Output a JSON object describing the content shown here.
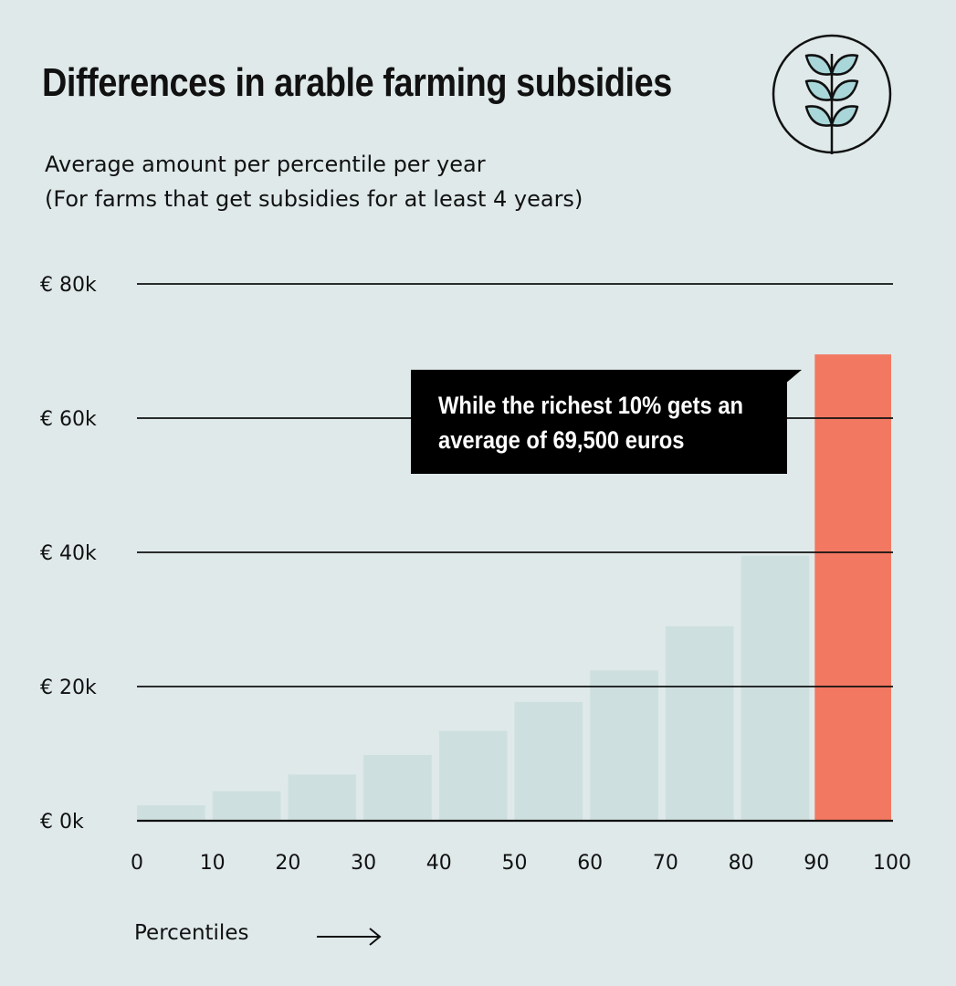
{
  "header": {
    "title": "Differences in arable farming subsidies",
    "subtitle_line1": "Average amount per percentile per year",
    "subtitle_line2": "(For farms that get subsidies for at least 4 years)",
    "logo_icon": "wheat-stalk-icon"
  },
  "callout": {
    "text": "While the richest 10% gets an average of 69,500 euros"
  },
  "chart_data": {
    "type": "bar",
    "title": "Differences in arable farming subsidies",
    "subtitle": "Average amount per percentile per year (For farms that get subsidies for at least 4 years)",
    "xlabel": "Percentiles",
    "ylabel": "",
    "x_ticks": [
      "0",
      "10",
      "20",
      "30",
      "40",
      "50",
      "60",
      "70",
      "80",
      "90",
      "100"
    ],
    "y_ticks": [
      "€ 0k",
      "€ 20k",
      "€ 40k",
      "€ 60k",
      "€ 80k"
    ],
    "y_tick_values": [
      0,
      20000,
      40000,
      60000,
      80000
    ],
    "ylim": [
      0,
      80000
    ],
    "xlim": [
      0,
      100
    ],
    "bins": [
      [
        0,
        10
      ],
      [
        10,
        20
      ],
      [
        20,
        30
      ],
      [
        30,
        40
      ],
      [
        40,
        50
      ],
      [
        50,
        60
      ],
      [
        60,
        70
      ],
      [
        70,
        80
      ],
      [
        80,
        90
      ],
      [
        90,
        100
      ]
    ],
    "values": [
      2300,
      4400,
      6900,
      9800,
      13400,
      17700,
      22400,
      29000,
      39500,
      69500
    ],
    "highlight_index": 9,
    "grid": true,
    "colors": {
      "bar": "#cde0df",
      "highlight": "#f27862",
      "grid": "#111111"
    }
  }
}
